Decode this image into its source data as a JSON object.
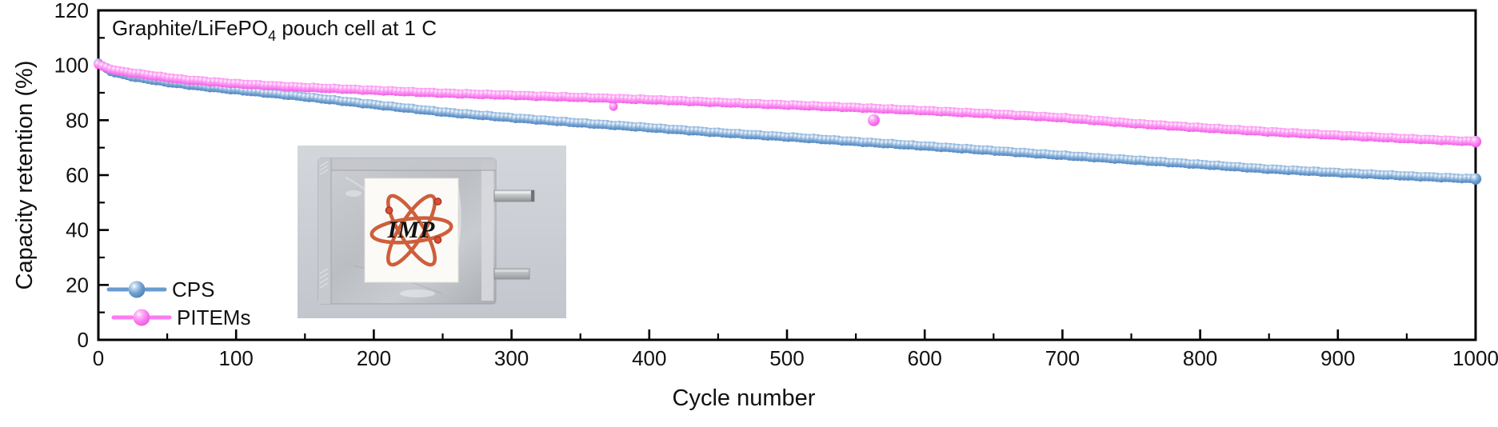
{
  "figure": {
    "title_parts": {
      "prefix": "Graphite/LiFePO",
      "sub": "4",
      "suffix": " pouch cell at 1 C"
    },
    "xlabel": "Cycle number",
    "ylabel": "Capacity retention (%)"
  },
  "chart_data": {
    "type": "scatter",
    "title": "Graphite/LiFePO4 pouch cell at 1 C",
    "xlabel": "Cycle number",
    "ylabel": "Capacity retention (%)",
    "xlim": [
      0,
      1000
    ],
    "ylim": [
      0,
      120
    ],
    "x_major_tick_step": 100,
    "x_minor_tick_step": 50,
    "y_major_tick_step": 20,
    "y_minor_tick_step": 10,
    "grid": false,
    "legend_position": "lower left",
    "series": [
      {
        "name": "CPS",
        "color": "#6b9ccf",
        "color_light": "#b9d2ec",
        "color_dark": "#4d7fb5",
        "marker": "sphere",
        "points": [
          [
            0,
            100.8
          ],
          [
            5,
            99.0
          ],
          [
            10,
            97.6
          ],
          [
            25,
            95.8
          ],
          [
            50,
            93.8
          ],
          [
            75,
            92.3
          ],
          [
            100,
            91.0
          ],
          [
            143,
            88.9
          ],
          [
            200,
            85.7
          ],
          [
            254,
            82.8
          ],
          [
            300,
            80.9
          ],
          [
            350,
            79.0
          ],
          [
            400,
            77.3
          ],
          [
            450,
            75.5
          ],
          [
            504,
            73.8
          ],
          [
            550,
            72.2
          ],
          [
            600,
            70.6
          ],
          [
            650,
            68.9
          ],
          [
            700,
            67.2
          ],
          [
            752,
            65.5
          ],
          [
            800,
            63.9
          ],
          [
            850,
            62.2
          ],
          [
            900,
            60.9
          ],
          [
            950,
            59.7
          ],
          [
            1000,
            58.6
          ]
        ]
      },
      {
        "name": "PITEMs",
        "color": "#fa7df0",
        "color_light": "#ffb6f8",
        "color_dark": "#e656da",
        "marker": "sphere",
        "points": [
          [
            0,
            100.3
          ],
          [
            5,
            99.2
          ],
          [
            15,
            97.9
          ],
          [
            40,
            96.2
          ],
          [
            62,
            94.8
          ],
          [
            100,
            93.3
          ],
          [
            143,
            92.1
          ],
          [
            200,
            90.9
          ],
          [
            254,
            89.8
          ],
          [
            300,
            89.1
          ],
          [
            350,
            88.3
          ],
          [
            400,
            87.5
          ],
          [
            450,
            86.5
          ],
          [
            504,
            85.5
          ],
          [
            550,
            84.6
          ],
          [
            600,
            83.5
          ],
          [
            650,
            82.3
          ],
          [
            700,
            80.9
          ],
          [
            752,
            78.8
          ],
          [
            800,
            77.3
          ],
          [
            850,
            75.8
          ],
          [
            900,
            74.5
          ],
          [
            950,
            73.3
          ],
          [
            1000,
            72.2
          ]
        ],
        "outlier_points": [
          [
            374,
            85.0,
            5.5
          ],
          [
            563,
            80.0,
            7.5
          ]
        ]
      }
    ]
  },
  "inset_photo": {
    "logo_text": "IMP",
    "logo_orange": "#cd5f3a",
    "logo_blue": "#2b3c92",
    "photo_bg": "#c9cdd3",
    "pouch_silver": "#b9bcc1"
  }
}
